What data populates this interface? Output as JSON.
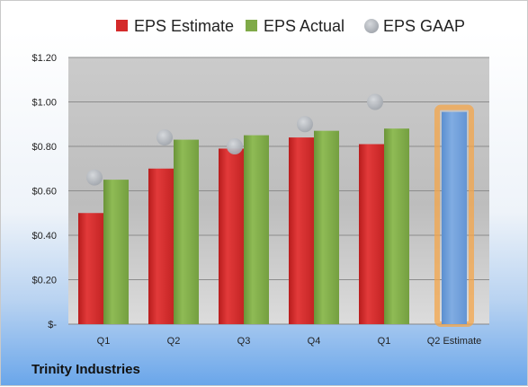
{
  "company": "Trinity Industries",
  "chart_data": {
    "type": "bar",
    "categories": [
      "Q1",
      "Q2",
      "Q3",
      "Q4",
      "Q1",
      "Q2 Estimate"
    ],
    "series": [
      {
        "name": "EPS Estimate",
        "color": "#d42a2a",
        "values": [
          0.5,
          0.7,
          0.79,
          0.84,
          0.81,
          null
        ]
      },
      {
        "name": "EPS Actual",
        "color": "#7faa48",
        "values": [
          0.65,
          0.83,
          0.85,
          0.87,
          0.88,
          null
        ]
      },
      {
        "name": "EPS GAAP",
        "color": "#b3b7bd",
        "marker": "circle",
        "values": [
          0.66,
          0.84,
          0.8,
          0.9,
          1.0,
          null
        ]
      },
      {
        "name": "Q2 Estimate",
        "color": "#6fa0d9",
        "highlight": "#f4a64a",
        "values": [
          null,
          null,
          null,
          null,
          null,
          0.955
        ]
      }
    ],
    "legend": [
      "EPS Estimate",
      "EPS Actual",
      "EPS GAAP"
    ],
    "legend_position": "top",
    "yticks": [
      "$-",
      "$0.20",
      "$0.40",
      "$0.60",
      "$0.80",
      "$1.00",
      "$1.20"
    ],
    "ylim": [
      0,
      1.2
    ],
    "grid": true
  }
}
